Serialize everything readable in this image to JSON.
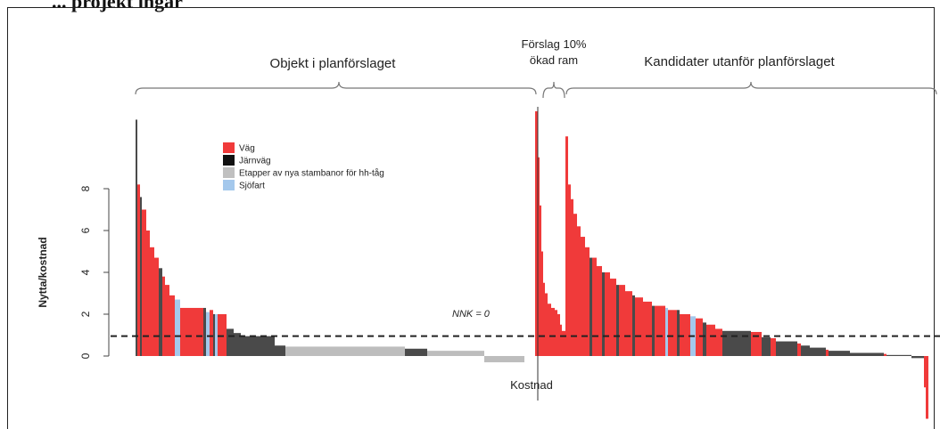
{
  "header_cut_text": "... projekt ingår",
  "chart_data": {
    "type": "bar",
    "ylabel": "Nytta/kostnad",
    "xlabel": "Kostnad",
    "ylim": [
      -3.2,
      11.6
    ],
    "yticks": [
      0,
      2,
      4,
      6,
      8
    ],
    "reference_line": {
      "value": 0.95,
      "label": "NNK = 0"
    },
    "brackets": [
      {
        "label": "Objekt i planförslaget"
      },
      {
        "label_lines": [
          "Förslag 10%",
          "ökad ram"
        ]
      },
      {
        "label": "Kandidater utanför planförslaget"
      }
    ],
    "legend": {
      "position": "upper-left-inside",
      "items": [
        {
          "label": "Väg",
          "color": "#f03a3a"
        },
        {
          "label": "Järnväg",
          "color": "#111111"
        },
        {
          "label": "Etapper av nya stambanor för hh-tåg",
          "color": "#c0c0c0"
        },
        {
          "label": "Sjöfart",
          "color": "#a4c8ec"
        }
      ]
    },
    "series_colors": {
      "road": "#f03a3a",
      "rail": "#4a4a4a",
      "hhtag": "#bdbdbd",
      "sea": "#a4c8ec"
    },
    "series": [
      {
        "name": "Objekt i planförslaget",
        "bars": [
          {
            "v": 11.3,
            "c": "rail",
            "w": 2
          },
          {
            "v": 8.2,
            "c": "road",
            "w": 3
          },
          {
            "v": 7.6,
            "c": "rail",
            "w": 2
          },
          {
            "v": 7.0,
            "c": "road",
            "w": 5
          },
          {
            "v": 6.0,
            "c": "road",
            "w": 4
          },
          {
            "v": 5.2,
            "c": "road",
            "w": 5
          },
          {
            "v": 4.7,
            "c": "road",
            "w": 5
          },
          {
            "v": 4.2,
            "c": "rail",
            "w": 4
          },
          {
            "v": 3.8,
            "c": "road",
            "w": 3
          },
          {
            "v": 3.4,
            "c": "road",
            "w": 5
          },
          {
            "v": 2.9,
            "c": "road",
            "w": 6
          },
          {
            "v": 2.7,
            "c": "sea",
            "w": 6
          },
          {
            "v": 2.3,
            "c": "road",
            "w": 26
          },
          {
            "v": 2.3,
            "c": "rail",
            "w": 3
          },
          {
            "v": 2.1,
            "c": "sea",
            "w": 4
          },
          {
            "v": 2.2,
            "c": "road",
            "w": 4
          },
          {
            "v": 2.0,
            "c": "rail",
            "w": 2
          },
          {
            "v": 2.0,
            "c": "sea",
            "w": 3
          },
          {
            "v": 2.0,
            "c": "road",
            "w": 10
          },
          {
            "v": 1.3,
            "c": "rail",
            "w": 8
          },
          {
            "v": 1.1,
            "c": "rail",
            "w": 8
          },
          {
            "v": 0.95,
            "c": "rail",
            "w": 38
          },
          {
            "v": 0.5,
            "c": "rail",
            "w": 12
          },
          {
            "v": 0.45,
            "c": "hhtag",
            "w": 134
          },
          {
            "v": 0.35,
            "c": "rail",
            "w": 25
          },
          {
            "v": 0.25,
            "c": "hhtag",
            "w": 64
          },
          {
            "v": -0.3,
            "c": "hhtag",
            "w": 45
          }
        ]
      },
      {
        "name": "Förslag 10% ökad ram",
        "bars": [
          {
            "v": 11.7,
            "c": "road",
            "w": 3
          },
          {
            "v": 9.5,
            "c": "road",
            "w": 2
          },
          {
            "v": 7.2,
            "c": "road",
            "w": 2
          },
          {
            "v": 5.0,
            "c": "road",
            "w": 2
          },
          {
            "v": 3.5,
            "c": "road",
            "w": 2
          },
          {
            "v": 3.0,
            "c": "road",
            "w": 3
          },
          {
            "v": 2.5,
            "c": "road",
            "w": 4
          },
          {
            "v": 2.3,
            "c": "road",
            "w": 4
          },
          {
            "v": 2.2,
            "c": "road",
            "w": 3
          },
          {
            "v": 2.0,
            "c": "road",
            "w": 3
          },
          {
            "v": 1.5,
            "c": "road",
            "w": 2
          },
          {
            "v": 1.2,
            "c": "road",
            "w": 4
          }
        ]
      },
      {
        "name": "Kandidater utanför planförslaget",
        "bars": [
          {
            "v": 10.5,
            "c": "road",
            "w": 3
          },
          {
            "v": 8.2,
            "c": "road",
            "w": 3
          },
          {
            "v": 7.5,
            "c": "road",
            "w": 3
          },
          {
            "v": 6.8,
            "c": "road",
            "w": 4
          },
          {
            "v": 6.2,
            "c": "road",
            "w": 4
          },
          {
            "v": 5.7,
            "c": "road",
            "w": 5
          },
          {
            "v": 5.2,
            "c": "road",
            "w": 5
          },
          {
            "v": 4.7,
            "c": "rail",
            "w": 3
          },
          {
            "v": 4.7,
            "c": "road",
            "w": 5
          },
          {
            "v": 4.3,
            "c": "road",
            "w": 6
          },
          {
            "v": 4.0,
            "c": "rail",
            "w": 3
          },
          {
            "v": 4.0,
            "c": "road",
            "w": 6
          },
          {
            "v": 3.7,
            "c": "road",
            "w": 7
          },
          {
            "v": 3.4,
            "c": "rail",
            "w": 3
          },
          {
            "v": 3.4,
            "c": "road",
            "w": 7
          },
          {
            "v": 3.1,
            "c": "road",
            "w": 8
          },
          {
            "v": 2.9,
            "c": "rail",
            "w": 3
          },
          {
            "v": 2.8,
            "c": "road",
            "w": 9
          },
          {
            "v": 2.6,
            "c": "road",
            "w": 10
          },
          {
            "v": 2.4,
            "c": "rail",
            "w": 3
          },
          {
            "v": 2.4,
            "c": "road",
            "w": 12
          },
          {
            "v": 2.3,
            "c": "sea",
            "w": 3
          },
          {
            "v": 2.2,
            "c": "road",
            "w": 10
          },
          {
            "v": 2.2,
            "c": "rail",
            "w": 3
          },
          {
            "v": 2.0,
            "c": "road",
            "w": 12
          },
          {
            "v": 1.9,
            "c": "sea",
            "w": 6
          },
          {
            "v": 1.8,
            "c": "road",
            "w": 8
          },
          {
            "v": 1.6,
            "c": "rail",
            "w": 4
          },
          {
            "v": 1.5,
            "c": "road",
            "w": 10
          },
          {
            "v": 1.3,
            "c": "road",
            "w": 8
          },
          {
            "v": 1.2,
            "c": "rail",
            "w": 32
          },
          {
            "v": 1.15,
            "c": "road",
            "w": 12
          },
          {
            "v": 0.9,
            "c": "rail",
            "w": 10
          },
          {
            "v": 0.85,
            "c": "road",
            "w": 6
          },
          {
            "v": 0.7,
            "c": "rail",
            "w": 24
          },
          {
            "v": 0.6,
            "c": "road",
            "w": 4
          },
          {
            "v": 0.5,
            "c": "rail",
            "w": 10
          },
          {
            "v": 0.4,
            "c": "rail",
            "w": 18
          },
          {
            "v": 0.3,
            "c": "road",
            "w": 3
          },
          {
            "v": 0.25,
            "c": "rail",
            "w": 24
          },
          {
            "v": 0.15,
            "c": "rail",
            "w": 38
          },
          {
            "v": 0.1,
            "c": "road",
            "w": 3
          },
          {
            "v": 0.05,
            "c": "rail",
            "w": 28
          },
          {
            "v": -0.1,
            "c": "rail",
            "w": 14
          },
          {
            "v": -1.5,
            "c": "road",
            "w": 2
          },
          {
            "v": -3.0,
            "c": "road",
            "w": 3
          }
        ]
      }
    ]
  }
}
